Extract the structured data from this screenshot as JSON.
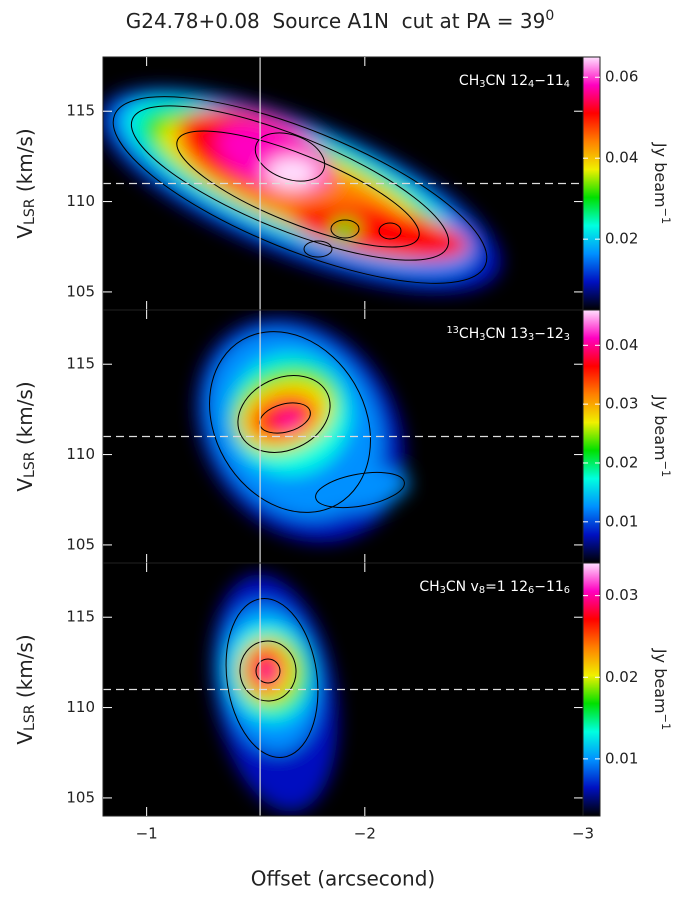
{
  "chart_data": [
    {
      "type": "heatmap",
      "title": [
        "G24.78+0.08  Source A1N  cut at PA = 39",
        "0"
      ],
      "annotation": [
        "CH",
        "3",
        "CN 12",
        "4",
        "−11",
        "4"
      ],
      "ylabel": [
        "V",
        "LSR",
        " (km/s)"
      ],
      "colorbar_label": [
        "Jy beam",
        "−1"
      ],
      "xlim": [
        -0.8,
        -3
      ],
      "xticks": [
        {
          "value": -1,
          "label": "−1"
        },
        {
          "value": -2,
          "label": "−2"
        },
        {
          "value": -3,
          "label": "−3"
        }
      ],
      "ylim": [
        104,
        118
      ],
      "yticks": [
        105,
        110,
        115
      ],
      "clim": [
        0.0025,
        0.065
      ],
      "cticks": [
        0.02,
        0.04,
        0.06
      ],
      "vline": -1.52,
      "hline": 111,
      "colormap": [
        "#000000",
        "#0010c0",
        "#0090ff",
        "#00ffe0",
        "#00e000",
        "#f0f000",
        "#ff8000",
        "#ff0000",
        "#ff00c0",
        "#ffe0ff"
      ]
    },
    {
      "type": "heatmap",
      "annotation": [
        "13",
        "CH",
        "3",
        "CN 13",
        "3",
        "−12",
        "3"
      ],
      "ylabel": [
        "V",
        "LSR",
        " (km/s)"
      ],
      "colorbar_label": [
        "Jy beam",
        "−1"
      ],
      "xlim": [
        -0.8,
        -3
      ],
      "xticks": [
        {
          "value": -1,
          "label": "−1"
        },
        {
          "value": -2,
          "label": "−2"
        },
        {
          "value": -3,
          "label": "−3"
        }
      ],
      "ylim": [
        104,
        118
      ],
      "yticks": [
        105,
        110,
        115
      ],
      "clim": [
        0.003,
        0.046
      ],
      "cticks": [
        0.01,
        0.02,
        0.03,
        0.04
      ],
      "vline": -1.52,
      "hline": 111,
      "colormap": [
        "#000000",
        "#0010c0",
        "#0090ff",
        "#00ffe0",
        "#00e000",
        "#f0f000",
        "#ff8000",
        "#ff0000",
        "#ff00c0",
        "#ffe0ff"
      ]
    },
    {
      "type": "heatmap",
      "annotation": [
        "CH",
        "3",
        "CN v",
        "8",
        "=1 12",
        "6",
        "−11",
        "6"
      ],
      "ylabel": [
        "V",
        "LSR",
        " (km/s)"
      ],
      "colorbar_label": [
        "Jy beam",
        "−1"
      ],
      "xlabel": "Offset (arcsecond)",
      "xlim": [
        -0.8,
        -3
      ],
      "xticks": [
        {
          "value": -1,
          "label": "−1"
        },
        {
          "value": -2,
          "label": "−2"
        },
        {
          "value": -3,
          "label": "−3"
        }
      ],
      "ylim": [
        104,
        118
      ],
      "yticks": [
        105,
        110,
        115
      ],
      "clim": [
        0.003,
        0.034
      ],
      "cticks": [
        0.01,
        0.02,
        0.03
      ],
      "vline": -1.52,
      "hline": 111,
      "colormap": [
        "#000000",
        "#0010c0",
        "#0090ff",
        "#00ffe0",
        "#00e000",
        "#f0f000",
        "#ff8000",
        "#ff0000",
        "#ff00c0",
        "#ffe0ff"
      ]
    }
  ]
}
